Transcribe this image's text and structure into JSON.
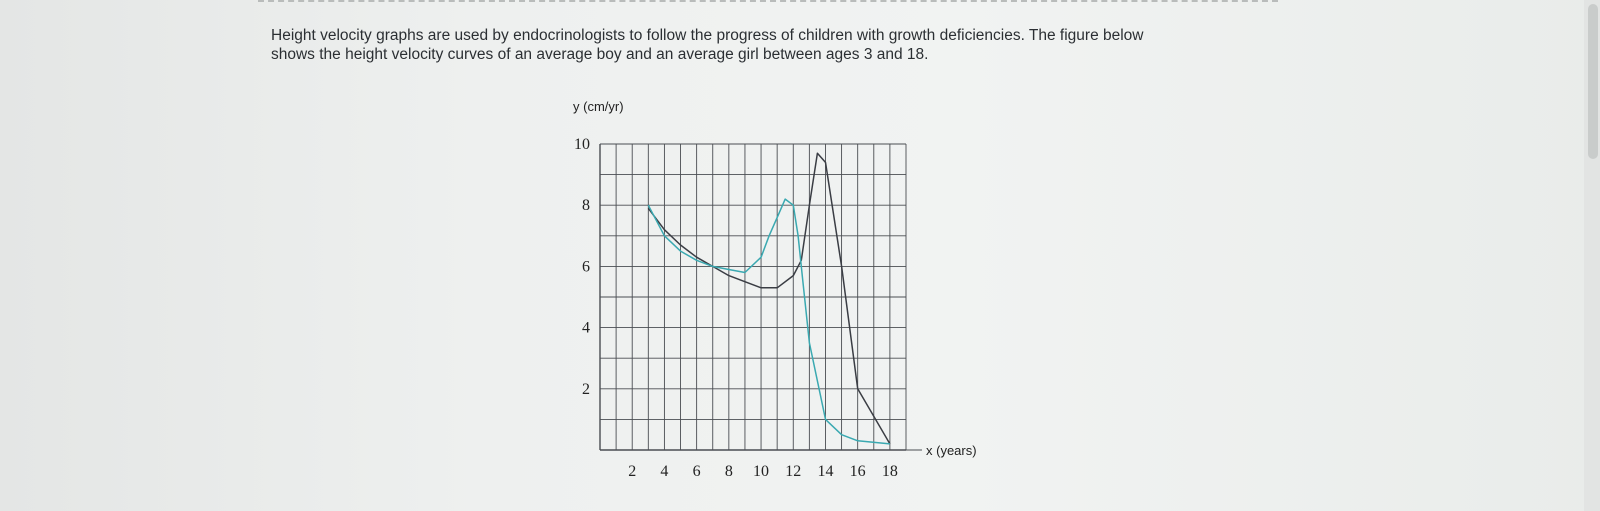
{
  "intro": {
    "line1": "Height velocity graphs are used by endocrinologists to follow the progress of children with growth deficiencies. The figure below",
    "line2": "shows the height velocity curves of an average boy and an average girl between ages 3 and 18."
  },
  "chart_data": {
    "type": "line",
    "xlabel": "x (years)",
    "ylabel": "y (cm/yr)",
    "xlim": [
      0,
      19
    ],
    "ylim": [
      0,
      10
    ],
    "xticks": [
      2,
      4,
      6,
      8,
      10,
      12,
      14,
      16,
      18
    ],
    "yticks": [
      2,
      4,
      6,
      8,
      10
    ],
    "grid": true,
    "colors": {
      "boy": "#3a3d44",
      "girl": "#3aa9b1",
      "grid": "#4a4d52"
    },
    "series": [
      {
        "x": [
          3,
          4,
          5,
          6,
          7,
          8,
          9,
          10,
          11,
          12,
          12.5,
          13,
          13.5,
          14,
          15,
          16,
          18
        ],
        "y": [
          7.9,
          7.2,
          6.7,
          6.3,
          6.0,
          5.7,
          5.5,
          5.3,
          5.3,
          5.7,
          6.2,
          8.0,
          9.7,
          9.4,
          6.0,
          2.0,
          0.2
        ]
      },
      {
        "x": [
          3,
          4,
          5,
          6,
          7,
          8,
          9,
          10,
          10.5,
          11,
          11.5,
          12,
          12.3,
          12.6,
          13,
          14,
          15,
          16,
          18
        ],
        "y": [
          8.0,
          7.0,
          6.5,
          6.2,
          6.0,
          5.9,
          5.8,
          6.3,
          7.0,
          7.6,
          8.2,
          8.0,
          7.0,
          5.5,
          3.5,
          1.0,
          0.5,
          0.3,
          0.2
        ]
      }
    ]
  }
}
